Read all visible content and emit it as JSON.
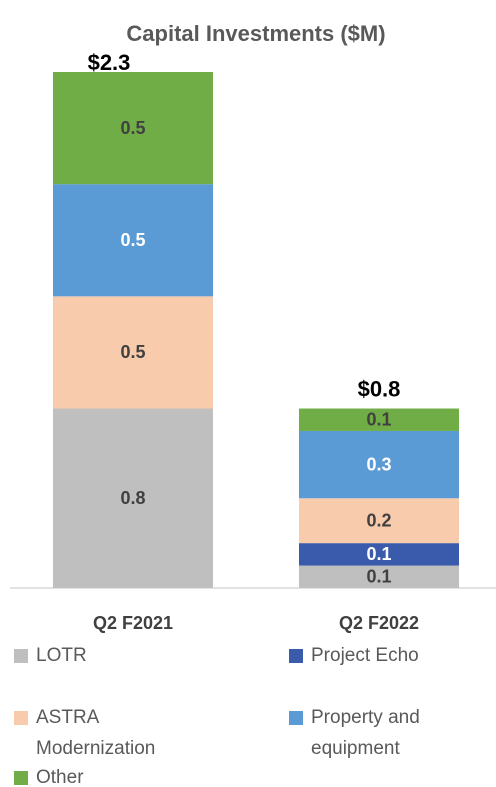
{
  "chart_data": {
    "type": "stacked-bar",
    "title": "Capital Investments ($M)",
    "categories": [
      "Q2 F2021",
      "Q2 F2022"
    ],
    "series": [
      {
        "name": "LOTR",
        "color": "#bfbfbf",
        "label_color": "#404040",
        "values": [
          0.8,
          0.1
        ]
      },
      {
        "name": "Project Echo",
        "color": "#3a5bab",
        "label_color": "#ffffff",
        "values": [
          null,
          0.1
        ]
      },
      {
        "name": "ASTRA Modernization",
        "color": "#f8cbad",
        "label_color": "#404040",
        "values": [
          0.5,
          0.2
        ]
      },
      {
        "name": "Property and equipment",
        "color": "#5b9bd5",
        "label_color": "#ffffff",
        "values": [
          0.5,
          0.3
        ]
      },
      {
        "name": "Other",
        "color": "#70ad47",
        "label_color": "#404040",
        "values": [
          0.5,
          0.1
        ]
      }
    ],
    "totals": [
      2.3,
      0.8
    ],
    "total_labels": [
      "$2.3",
      "$0.8"
    ]
  }
}
